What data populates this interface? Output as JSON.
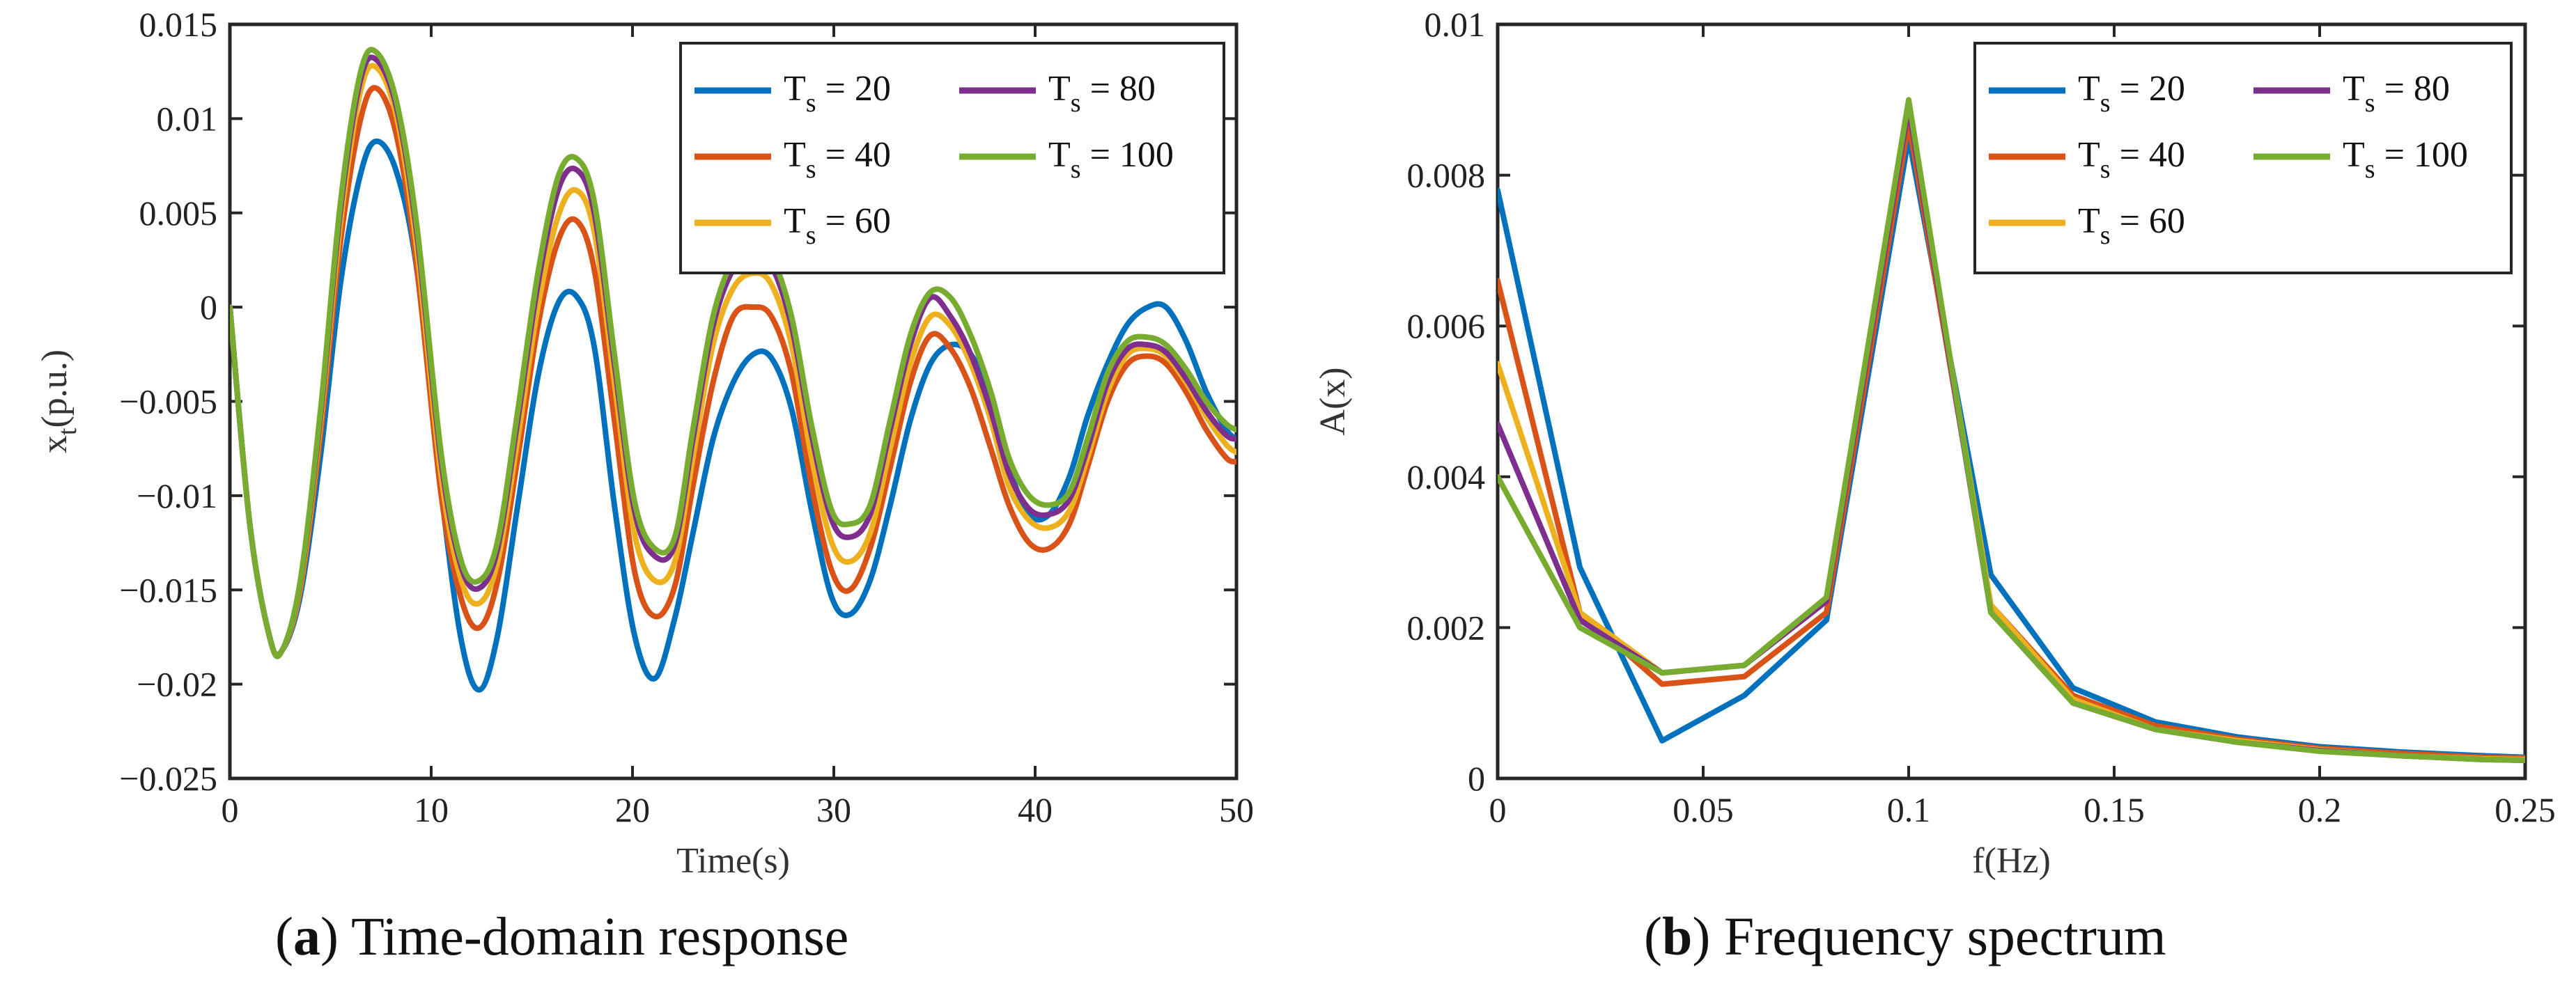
{
  "colors": {
    "Ts20": "#0072BD",
    "Ts40": "#D95319",
    "Ts60": "#EDB120",
    "Ts80": "#7E2F8E",
    "Ts100": "#77AC30"
  },
  "chart_data": [
    {
      "type": "line",
      "caption_letter": "a",
      "caption_text": "Time-domain response",
      "title": "",
      "xlabel": "Time(s)",
      "ylabel": {
        "main": "x",
        "sub": "t",
        "suffix": "(p.u.)"
      },
      "xlim": [
        0,
        50
      ],
      "ylim": [
        -0.025,
        0.015
      ],
      "xticks": [
        "0",
        "10",
        "20",
        "30",
        "40",
        "50"
      ],
      "yticks": [
        "-0.025",
        "-0.02",
        "-0.015",
        "-0.01",
        "-0.005",
        "0",
        "0.005",
        "0.01",
        "0.015"
      ],
      "legend_position": "top-right",
      "x": [
        0,
        1,
        2,
        2.6,
        3.5,
        4.5,
        5.5,
        6.5,
        7.3,
        8.3,
        9.3,
        10.5,
        11.5,
        12.4,
        13.3,
        14.3,
        15.3,
        16.3,
        17.2,
        18.1,
        19.1,
        20.1,
        21.1,
        22.1,
        23,
        24,
        25,
        26,
        26.9,
        27.9,
        28.9,
        29.9,
        30.8,
        31.8,
        32.8,
        33.8,
        34.8,
        35.8,
        36.8,
        37.8,
        38.7,
        39.7,
        40.7,
        41.7,
        42.6,
        43.6,
        44.6,
        45.6,
        46.5,
        47.5,
        48.5,
        49.5,
        50
      ],
      "series": [
        {
          "name": {
            "prefix": "T",
            "sub": "s",
            "suffix": " = 20"
          },
          "color_key": "Ts20",
          "values": [
            0,
            -0.0116,
            -0.0176,
            -0.0182,
            -0.0153,
            -0.0079,
            0.0013,
            0.0071,
            0.0088,
            0.0071,
            0.0019,
            -0.0098,
            -0.0177,
            -0.0203,
            -0.0174,
            -0.0105,
            -0.0037,
            0.0002,
            0.0006,
            -0.0021,
            -0.0105,
            -0.0174,
            -0.0197,
            -0.0165,
            -0.012,
            -0.007,
            -0.004,
            -0.0025,
            -0.0027,
            -0.0054,
            -0.0108,
            -0.0154,
            -0.0163,
            -0.0145,
            -0.0105,
            -0.006,
            -0.003,
            -0.002,
            -0.0025,
            -0.0048,
            -0.0085,
            -0.011,
            -0.011,
            -0.009,
            -0.0058,
            -0.003,
            -0.0009,
            0.0,
            0.0,
            -0.0018,
            -0.0045,
            -0.0065,
            -0.007
          ]
        },
        {
          "name": {
            "prefix": "T",
            "sub": "s",
            "suffix": " = 40"
          },
          "color_key": "Ts40",
          "values": [
            0,
            -0.0116,
            -0.0176,
            -0.0182,
            -0.015,
            -0.0068,
            0.0035,
            0.01,
            0.0116,
            0.009,
            0.002,
            -0.01,
            -0.0155,
            -0.017,
            -0.0145,
            -0.008,
            -0.001,
            0.0035,
            0.0046,
            0.002,
            -0.006,
            -0.014,
            -0.0164,
            -0.0148,
            -0.0095,
            -0.004,
            -0.0005,
            0.0,
            -0.0005,
            -0.0035,
            -0.0095,
            -0.014,
            -0.015,
            -0.0128,
            -0.0085,
            -0.004,
            -0.0015,
            -0.0022,
            -0.0043,
            -0.0075,
            -0.0105,
            -0.0125,
            -0.0128,
            -0.0115,
            -0.0085,
            -0.005,
            -0.003,
            -0.0026,
            -0.003,
            -0.0045,
            -0.0065,
            -0.008,
            -0.0082
          ]
        },
        {
          "name": {
            "prefix": "T",
            "sub": "s",
            "suffix": " = 60"
          },
          "color_key": "Ts60",
          "values": [
            0,
            -0.0116,
            -0.0176,
            -0.0182,
            -0.0148,
            -0.0062,
            0.0045,
            0.0115,
            0.0127,
            0.01,
            0.003,
            -0.009,
            -0.0145,
            -0.0157,
            -0.0135,
            -0.007,
            0.0,
            0.0048,
            0.0062,
            0.004,
            -0.004,
            -0.012,
            -0.0145,
            -0.0135,
            -0.008,
            -0.002,
            0.001,
            0.0018,
            0.0012,
            -0.002,
            -0.008,
            -0.0125,
            -0.0135,
            -0.012,
            -0.0075,
            -0.003,
            -0.0005,
            -0.001,
            -0.003,
            -0.006,
            -0.0095,
            -0.0113,
            -0.0117,
            -0.0108,
            -0.008,
            -0.0045,
            -0.0025,
            -0.0022,
            -0.0026,
            -0.004,
            -0.0058,
            -0.0073,
            -0.0077
          ]
        },
        {
          "name": {
            "prefix": "T",
            "sub": "s",
            "suffix": " = 80"
          },
          "color_key": "Ts80",
          "values": [
            0,
            -0.0116,
            -0.0176,
            -0.0182,
            -0.0146,
            -0.0058,
            0.0052,
            0.0121,
            0.0131,
            0.0105,
            0.0038,
            -0.0082,
            -0.0138,
            -0.0149,
            -0.0128,
            -0.006,
            0.0012,
            0.0062,
            0.0073,
            0.005,
            -0.003,
            -0.0108,
            -0.0132,
            -0.0126,
            -0.007,
            -0.001,
            0.002,
            0.0028,
            0.0022,
            -0.001,
            -0.0068,
            -0.0113,
            -0.0122,
            -0.011,
            -0.0065,
            -0.002,
            0.0005,
            -0.0005,
            -0.0025,
            -0.0055,
            -0.0088,
            -0.0107,
            -0.011,
            -0.0102,
            -0.0075,
            -0.004,
            -0.0022,
            -0.002,
            -0.0024,
            -0.0038,
            -0.0055,
            -0.0068,
            -0.007
          ]
        },
        {
          "name": {
            "prefix": "T",
            "sub": "s",
            "suffix": " = 100"
          },
          "color_key": "Ts100",
          "values": [
            0,
            -0.0116,
            -0.0176,
            -0.0182,
            -0.0145,
            -0.0055,
            0.0056,
            0.0125,
            0.0135,
            0.0108,
            0.0042,
            -0.0078,
            -0.0135,
            -0.0145,
            -0.0124,
            -0.0055,
            0.0018,
            0.0069,
            0.0079,
            0.0056,
            -0.0025,
            -0.0103,
            -0.0128,
            -0.0122,
            -0.0065,
            -0.0005,
            0.0025,
            0.0033,
            0.0027,
            -0.0005,
            -0.0063,
            -0.0108,
            -0.0115,
            -0.0105,
            -0.006,
            -0.0015,
            0.0008,
            0.0005,
            -0.0015,
            -0.0045,
            -0.008,
            -0.01,
            -0.0105,
            -0.0098,
            -0.007,
            -0.0035,
            -0.0018,
            -0.0016,
            -0.002,
            -0.0033,
            -0.005,
            -0.0062,
            -0.0065
          ]
        }
      ]
    },
    {
      "type": "line",
      "caption_letter": "b",
      "caption_text": "Frequency spectrum",
      "title": "",
      "xlabel": "f(Hz)",
      "ylabel": {
        "main": "A(x)",
        "sub": "",
        "suffix": ""
      },
      "xlim": [
        0,
        0.25
      ],
      "ylim": [
        0,
        0.01
      ],
      "xticks": [
        "0",
        "0.05",
        "0.1",
        "0.15",
        "0.2",
        "0.25"
      ],
      "yticks": [
        "0",
        "0.002",
        "0.004",
        "0.006",
        "0.008",
        "0.01"
      ],
      "legend_position": "top-right",
      "x": [
        0,
        0.02,
        0.04,
        0.06,
        0.08,
        0.1,
        0.12,
        0.14,
        0.16,
        0.18,
        0.2,
        0.22,
        0.24,
        0.25
      ],
      "series": [
        {
          "name": {
            "prefix": "T",
            "sub": "s",
            "suffix": " = 20"
          },
          "color_key": "Ts20",
          "values": [
            0.0078,
            0.0028,
            0.0005,
            0.0011,
            0.0021,
            0.0085,
            0.0027,
            0.0012,
            0.00075,
            0.00055,
            0.00042,
            0.00035,
            0.0003,
            0.00028
          ]
        },
        {
          "name": {
            "prefix": "T",
            "sub": "s",
            "suffix": " = 40"
          },
          "color_key": "Ts40",
          "values": [
            0.0066,
            0.0022,
            0.00125,
            0.00135,
            0.0022,
            0.0087,
            0.0023,
            0.0011,
            0.0007,
            0.00052,
            0.0004,
            0.00033,
            0.00028,
            0.00027
          ]
        },
        {
          "name": {
            "prefix": "T",
            "sub": "s",
            "suffix": " = 60"
          },
          "color_key": "Ts60",
          "values": [
            0.0055,
            0.0022,
            0.0014,
            0.0015,
            0.0024,
            0.0089,
            0.0023,
            0.00105,
            0.00065,
            0.0005,
            0.00038,
            0.0003,
            0.00026,
            0.00025
          ]
        },
        {
          "name": {
            "prefix": "T",
            "sub": "s",
            "suffix": " = 80"
          },
          "color_key": "Ts80",
          "values": [
            0.0047,
            0.0021,
            0.0014,
            0.0015,
            0.00235,
            0.0089,
            0.0022,
            0.001,
            0.00065,
            0.00048,
            0.00037,
            0.0003,
            0.00025,
            0.00024
          ]
        },
        {
          "name": {
            "prefix": "T",
            "sub": "s",
            "suffix": " = 100"
          },
          "color_key": "Ts100",
          "values": [
            0.004,
            0.002,
            0.0014,
            0.0015,
            0.0024,
            0.009,
            0.0022,
            0.001,
            0.00065,
            0.00048,
            0.00036,
            0.0003,
            0.00025,
            0.00024
          ]
        }
      ]
    }
  ]
}
